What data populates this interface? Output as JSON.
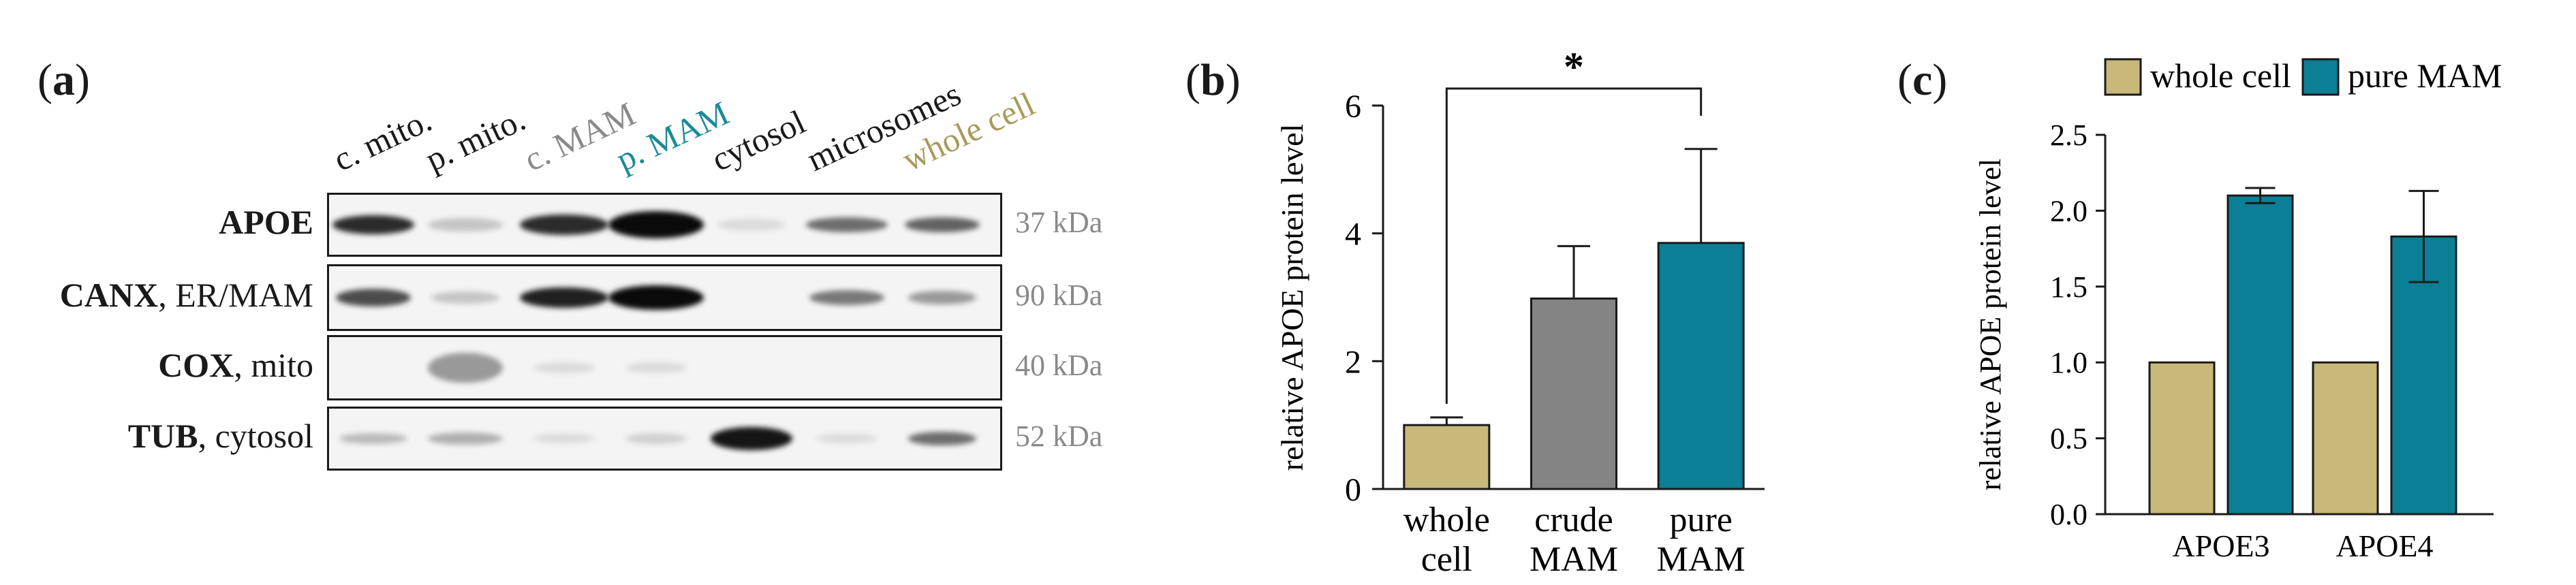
{
  "panel_a": {
    "label_open": "(",
    "label_letter": "a",
    "label_close": ")",
    "lanes": [
      {
        "label": "c. mito.",
        "color": "#1a1a1a"
      },
      {
        "label": "p. mito.",
        "color": "#1a1a1a"
      },
      {
        "label": "c. MAM",
        "color": "#8a8a8a"
      },
      {
        "label": "p. MAM",
        "color": "#1a8a9a"
      },
      {
        "label": "cytosol",
        "color": "#1a1a1a"
      },
      {
        "label": "microsomes",
        "color": "#1a1a1a"
      },
      {
        "label": "whole cell",
        "color": "#a89a5a"
      }
    ],
    "rows": [
      {
        "bold": "APOE",
        "rest": "",
        "kda": "37 kDa"
      },
      {
        "bold": "CANX",
        "rest": ", ER/MAM",
        "kda": "90 kDa"
      },
      {
        "bold": "COX",
        "rest": ", mito",
        "kda": "40 kDa"
      },
      {
        "bold": "TUB",
        "rest": ", cytosol",
        "kda": "52 kDa"
      }
    ]
  },
  "panel_b": {
    "label_open": "(",
    "label_letter": "b",
    "label_close": ")",
    "significance": "*"
  },
  "panel_c": {
    "label_open": "(",
    "label_letter": "c",
    "label_close": ")"
  },
  "colors": {
    "whole_cell": "#c8b87a",
    "crude_mam": "#848484",
    "pure_mam": "#0a7f95"
  },
  "chart_data": [
    {
      "id": "b",
      "type": "bar",
      "title": "",
      "ylabel": "relative APOE protein level",
      "xlabel": "",
      "categories": [
        [
          "whole",
          "cell"
        ],
        [
          "crude",
          "MAM"
        ],
        [
          "pure",
          "MAM"
        ]
      ],
      "values": [
        1.0,
        2.98,
        3.85
      ],
      "errors": [
        0.12,
        0.82,
        1.47
      ],
      "colors": [
        "#c8b87a",
        "#848484",
        "#0a7f95"
      ],
      "ylim": [
        0,
        6
      ],
      "yticks": [
        0,
        2,
        4,
        6
      ],
      "significance": {
        "from": 0,
        "to": 2,
        "label": "*"
      }
    },
    {
      "id": "c",
      "type": "bar",
      "title": "",
      "ylabel": "relative APOE protein level",
      "xlabel": "",
      "categories": [
        "APOE3",
        "APOE4"
      ],
      "series": [
        {
          "name": "whole cell",
          "values": [
            1.0,
            1.0
          ],
          "errors": [
            0,
            0
          ],
          "color": "#c8b87a"
        },
        {
          "name": "pure MAM",
          "values": [
            2.1,
            1.83
          ],
          "errors": [
            0.05,
            0.3
          ],
          "color": "#0a7f95"
        }
      ],
      "ylim": [
        0,
        2.5
      ],
      "yticks": [
        "0.0",
        "0.5",
        "1.0",
        "1.5",
        "2.0",
        "2.5"
      ],
      "legend": "top"
    }
  ]
}
